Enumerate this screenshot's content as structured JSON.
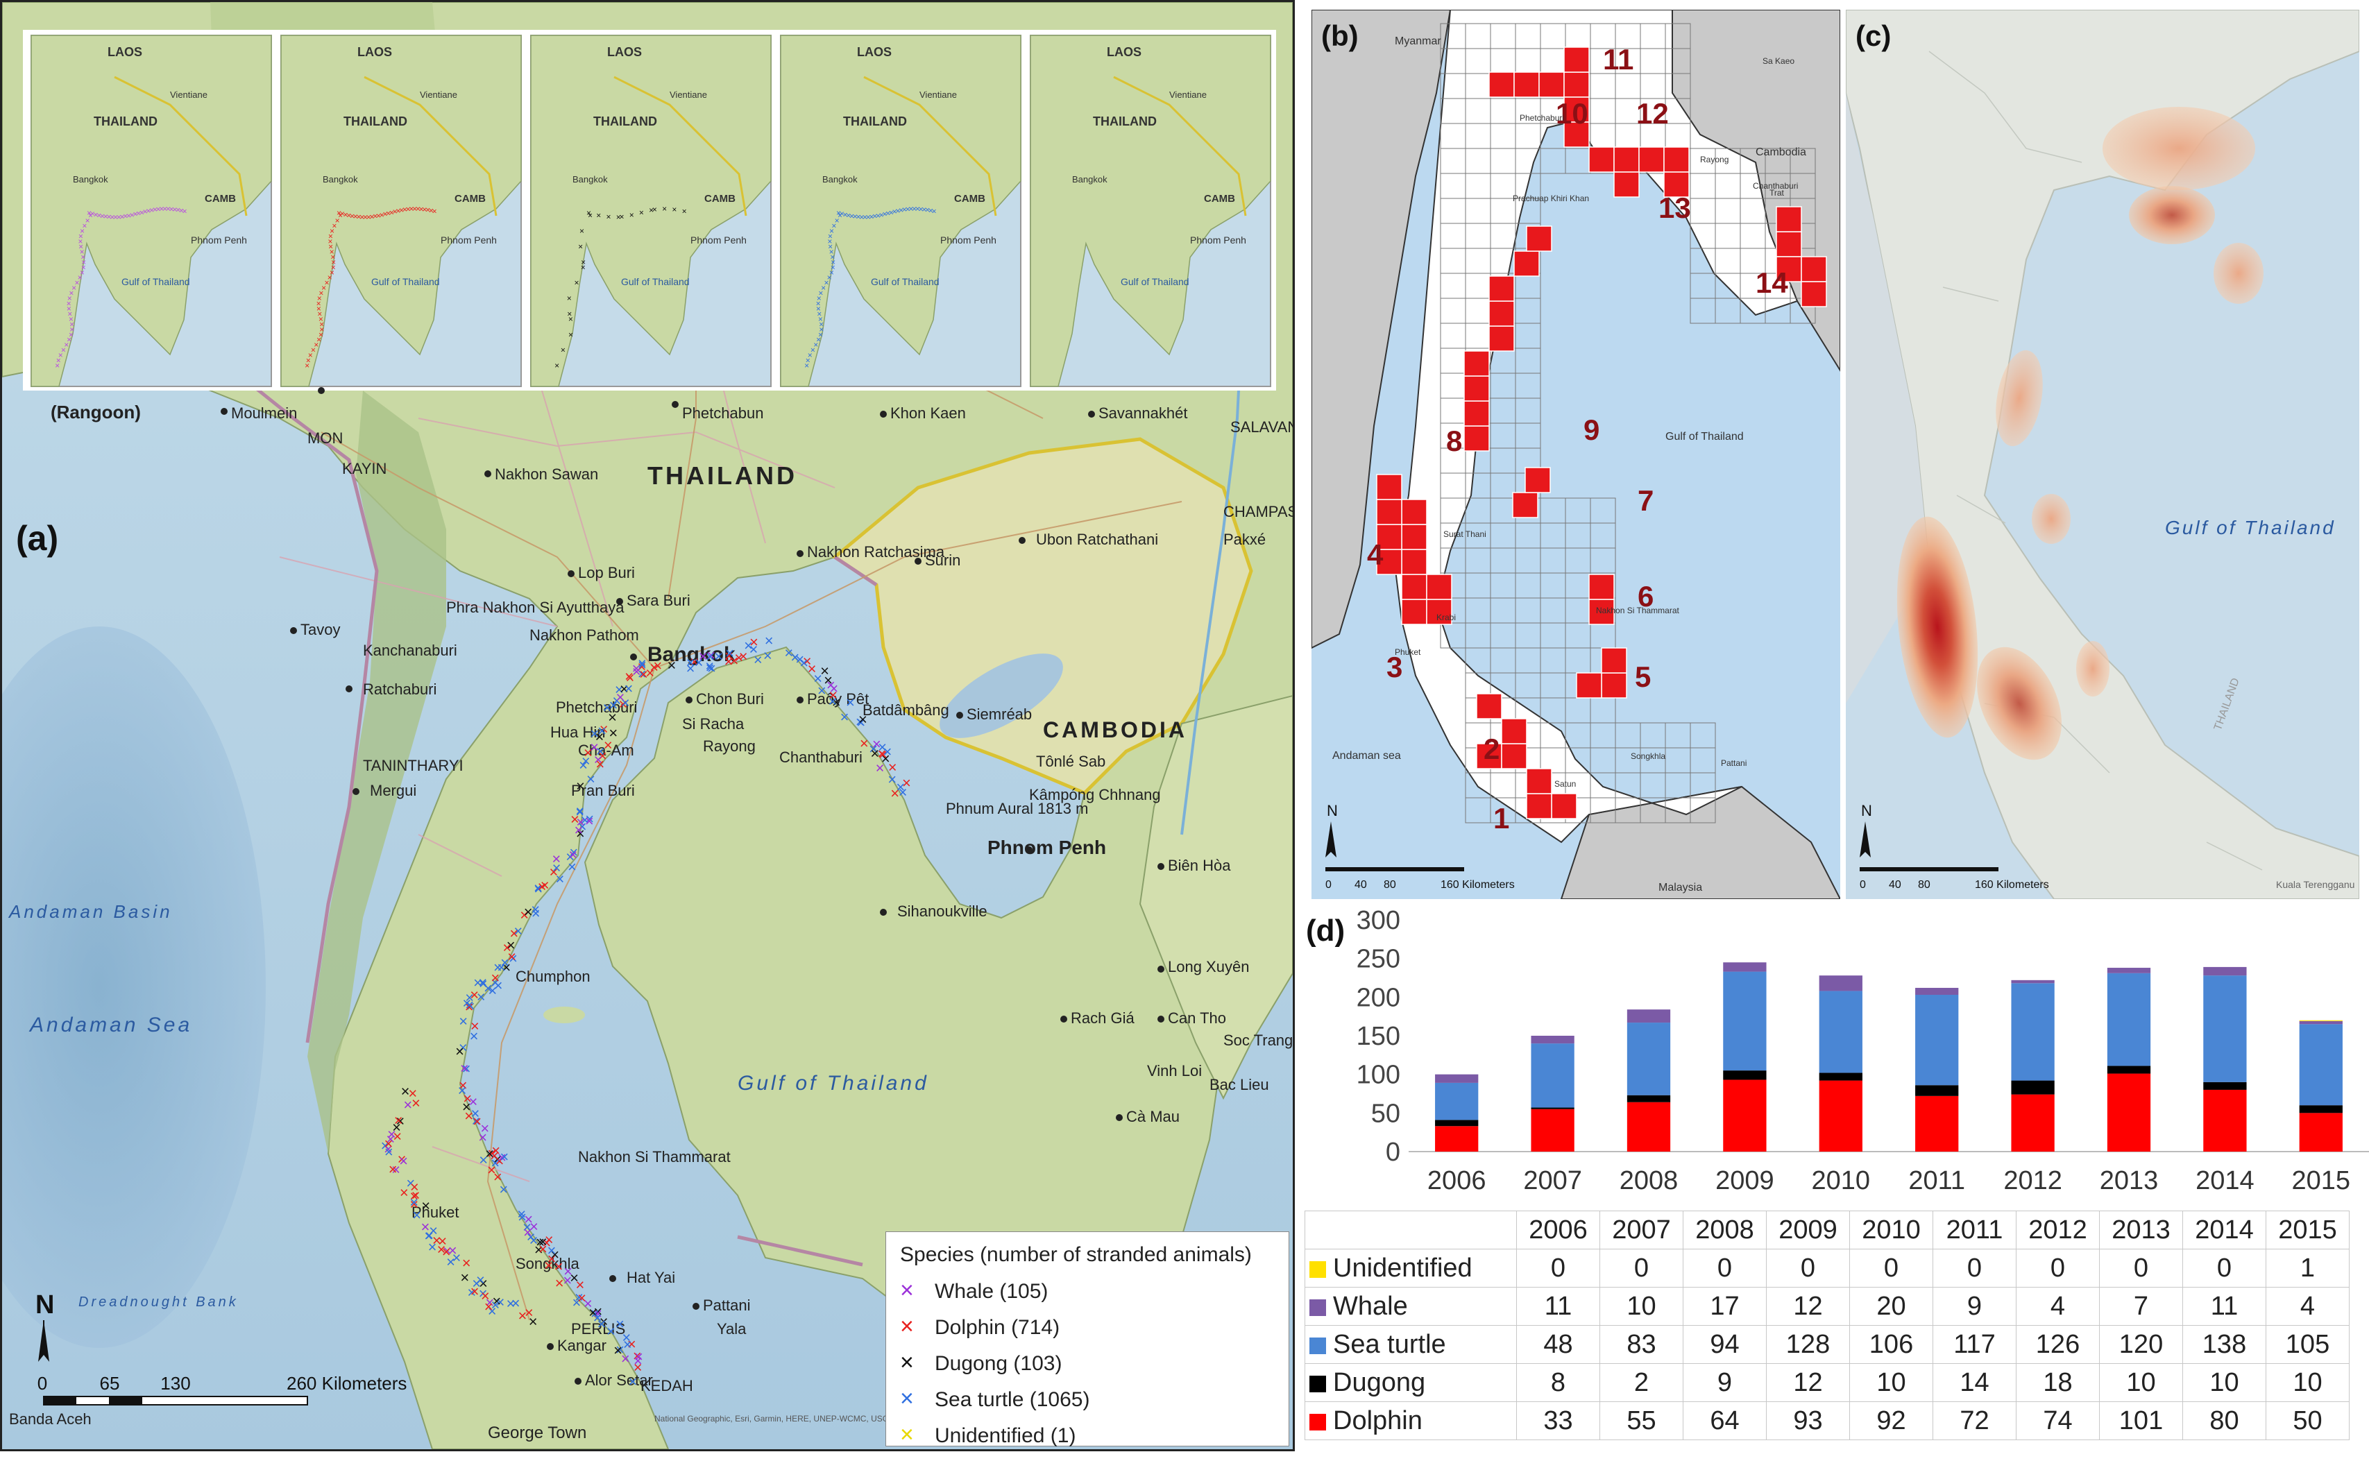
{
  "panel_a": {
    "label": "(a)",
    "inset_labels": {
      "laos": "LAOS",
      "thailand": "THAILAND",
      "vientiane": "Vientiane",
      "bangkok": "Bangkok",
      "phnom_penh": "Phnom Penh",
      "gulf": "Gulf of Thailand",
      "camb": "CAMB"
    },
    "place_labels": [
      {
        "name": "rangoon",
        "text": "(Rangoon)"
      },
      {
        "name": "moulmein",
        "text": "Moulmein"
      },
      {
        "name": "phetchabun",
        "text": "Phetchabun"
      },
      {
        "name": "khon-kaen",
        "text": "Khon Kaen"
      },
      {
        "name": "savannakhet",
        "text": "Savannakhét"
      },
      {
        "name": "salavan",
        "text": "SALAVAN"
      },
      {
        "name": "mon",
        "text": "MON"
      },
      {
        "name": "kayin",
        "text": "KAYIN"
      },
      {
        "name": "nakhon-sawan",
        "text": "Nakhon Sawan"
      },
      {
        "name": "thailand",
        "text": "THAILAND"
      },
      {
        "name": "champasak",
        "text": "CHAMPASAK"
      },
      {
        "name": "pakxe",
        "text": "Pakxé"
      },
      {
        "name": "ubon",
        "text": "Ubon Ratchathani"
      },
      {
        "name": "nakhon-ratchasima",
        "text": "Nakhon Ratchasima"
      },
      {
        "name": "surin",
        "text": "Surin"
      },
      {
        "name": "lop-buri",
        "text": "Lop Buri"
      },
      {
        "name": "sara-buri",
        "text": "Sara Buri"
      },
      {
        "name": "ayutthaya",
        "text": "Phra Nakhon Si Ayutthaya"
      },
      {
        "name": "tavoy",
        "text": "Tavoy"
      },
      {
        "name": "nakhon-pathom",
        "text": "Nakhon Pathom"
      },
      {
        "name": "kanchanaburi",
        "text": "Kanchanaburi"
      },
      {
        "name": "bangkok",
        "text": "Bangkok"
      },
      {
        "name": "ratchaburi",
        "text": "Ratchaburi"
      },
      {
        "name": "phetchaburi",
        "text": "Phetchaburi"
      },
      {
        "name": "chon-buri",
        "text": "Chon Buri"
      },
      {
        "name": "paoy-pet",
        "text": "Paôy Pêt"
      },
      {
        "name": "siemreab",
        "text": "Siemréab"
      },
      {
        "name": "batdambang",
        "text": "Batdâmbâng"
      },
      {
        "name": "cambodia",
        "text": "CAMBODIA"
      },
      {
        "name": "tonle-sab",
        "text": "Tônlé Sab"
      },
      {
        "name": "kampong-chhnang",
        "text": "Kâmpóng Chhnang"
      },
      {
        "name": "phnum-aural",
        "text": "Phnum Aural 1813 m"
      },
      {
        "name": "phnom-penh",
        "text": "Phnom Penh"
      },
      {
        "name": "tanintharyi",
        "text": "TANINTHARYI"
      },
      {
        "name": "mergui",
        "text": "Mergui"
      },
      {
        "name": "hua-hin",
        "text": "Hua Hin"
      },
      {
        "name": "cha-am",
        "text": "Cha-Am"
      },
      {
        "name": "si-racha",
        "text": "Si Racha"
      },
      {
        "name": "rayong",
        "text": "Rayong"
      },
      {
        "name": "chanthaburi",
        "text": "Chanthaburi"
      },
      {
        "name": "pran-buri",
        "text": "Pran Buri"
      },
      {
        "name": "sihanoukville",
        "text": "Sihanoukville"
      },
      {
        "name": "bien-hoa",
        "text": "Biên Hòa"
      },
      {
        "name": "long-xuyen",
        "text": "Long Xuyên"
      },
      {
        "name": "rach-gia",
        "text": "Rach Giá"
      },
      {
        "name": "can-tho",
        "text": "Can Tho"
      },
      {
        "name": "soc-trang",
        "text": "Soc Trang"
      },
      {
        "name": "vinh-loi",
        "text": "Vinh Loi"
      },
      {
        "name": "bac-lieu",
        "text": "Bac Lieu"
      },
      {
        "name": "ca-mau",
        "text": "Cà Mau"
      },
      {
        "name": "andaman-basin",
        "text": "Andaman Basin"
      },
      {
        "name": "andaman-sea",
        "text": "Andaman Sea"
      },
      {
        "name": "chumphon",
        "text": "Chumphon"
      },
      {
        "name": "gulf-of-thailand",
        "text": "Gulf of Thailand"
      },
      {
        "name": "nakhon-si-thammarat",
        "text": "Nakhon Si Thammarat"
      },
      {
        "name": "phuket",
        "text": "Phuket"
      },
      {
        "name": "songkhla",
        "text": "Songkhla"
      },
      {
        "name": "hat-yai",
        "text": "Hat Yai"
      },
      {
        "name": "pattani",
        "text": "Pattani"
      },
      {
        "name": "yala",
        "text": "Yala"
      },
      {
        "name": "perlis",
        "text": "PERLIS"
      },
      {
        "name": "kangar",
        "text": "Kangar"
      },
      {
        "name": "alor-setar",
        "text": "Alor Setar"
      },
      {
        "name": "kedah",
        "text": "KEDAH"
      },
      {
        "name": "george-town",
        "text": "George Town"
      },
      {
        "name": "banda-aceh",
        "text": "Banda Aceh"
      },
      {
        "name": "dreadnought-bank",
        "text": "Dreadnought Bank"
      }
    ],
    "scale_bar": {
      "ticks": [
        "0",
        "65",
        "130",
        "260 Kilometers"
      ]
    },
    "north": "N",
    "legend": {
      "title": "Species (number of stranded animals)",
      "items": [
        {
          "label": "Whale (105)",
          "color": "#9b30d9"
        },
        {
          "label": "Dolphin (714)",
          "color": "#e8201e"
        },
        {
          "label": "Dugong (103)",
          "color": "#111111"
        },
        {
          "label": "Sea turtle (1065)",
          "color": "#2f6fe0"
        },
        {
          "label": "Unidentified (1)",
          "color": "#f0e020"
        }
      ]
    },
    "attribution": "National Geographic, Esri, Garmin, HERE, UNEP-WCMC, USGS, NASA, ESA, METI, NRCAN, GEBCO, NOAA, increment P Corp."
  },
  "panel_b": {
    "label": "(b)",
    "grid_numbers": [
      "1",
      "2",
      "3",
      "4",
      "5",
      "6",
      "7",
      "8",
      "9",
      "10",
      "11",
      "12",
      "13",
      "14"
    ],
    "place_labels": [
      {
        "name": "myanmar",
        "text": "Myanmar"
      },
      {
        "name": "cambodia",
        "text": "Cambodia"
      },
      {
        "name": "gulf",
        "text": "Gulf of Thailand"
      },
      {
        "name": "andaman",
        "text": "Andaman sea"
      },
      {
        "name": "malaysia",
        "text": "Malaysia"
      },
      {
        "name": "rayong",
        "text": "Rayong"
      },
      {
        "name": "chanthaburi",
        "text": "Chanthaburi"
      },
      {
        "name": "trat",
        "text": "Trat"
      },
      {
        "name": "surat-thani",
        "text": "Surat Thani"
      },
      {
        "name": "krabi",
        "text": "Krabi"
      },
      {
        "name": "phuket",
        "text": "Phuket"
      },
      {
        "name": "songkhla",
        "text": "Songkhla"
      },
      {
        "name": "pattani",
        "text": "Pattani"
      },
      {
        "name": "phetchaburi",
        "text": "Phetchaburi"
      },
      {
        "name": "prachuap",
        "text": "Prachuap Khiri Khan"
      },
      {
        "name": "nakhon-si",
        "text": "Nakhon Si Thammarat"
      },
      {
        "name": "satun",
        "text": "Satun"
      },
      {
        "name": "sa-kaeo",
        "text": "Sa Kaeo"
      }
    ],
    "scale_ticks": [
      "0",
      "40",
      "80",
      "160 Kilometers"
    ],
    "north": "N"
  },
  "panel_c": {
    "label": "(c)",
    "gulf_label": "Gulf of Thailand",
    "thailand": "THAILAND",
    "scale_ticks": [
      "0",
      "40",
      "80",
      "160 Kilometers"
    ],
    "north": "N",
    "attribution": "Kuala Terengganu"
  },
  "panel_d": {
    "label": "(d)"
  },
  "chart_data": {
    "type": "bar",
    "stacked": true,
    "categories": [
      "2006",
      "2007",
      "2008",
      "2009",
      "2010",
      "2011",
      "2012",
      "2013",
      "2014",
      "2015"
    ],
    "ylim": [
      0,
      300
    ],
    "yticks": [
      0,
      50,
      100,
      150,
      200,
      250,
      300
    ],
    "grid": false,
    "series": [
      {
        "name": "Dolphin",
        "color": "#ff0000",
        "values": [
          33,
          55,
          64,
          93,
          92,
          72,
          74,
          101,
          80,
          50
        ]
      },
      {
        "name": "Dugong",
        "color": "#000000",
        "values": [
          8,
          2,
          9,
          12,
          10,
          14,
          18,
          10,
          10,
          10
        ]
      },
      {
        "name": "Sea turtle",
        "color": "#4a86d4",
        "values": [
          48,
          83,
          94,
          128,
          106,
          117,
          126,
          120,
          138,
          105
        ]
      },
      {
        "name": "Whale",
        "color": "#7b5aa6",
        "values": [
          11,
          10,
          17,
          12,
          20,
          9,
          4,
          7,
          11,
          4
        ]
      },
      {
        "name": "Unidentified",
        "color": "#ffe000",
        "values": [
          0,
          0,
          0,
          0,
          0,
          0,
          0,
          0,
          0,
          1
        ]
      }
    ]
  }
}
